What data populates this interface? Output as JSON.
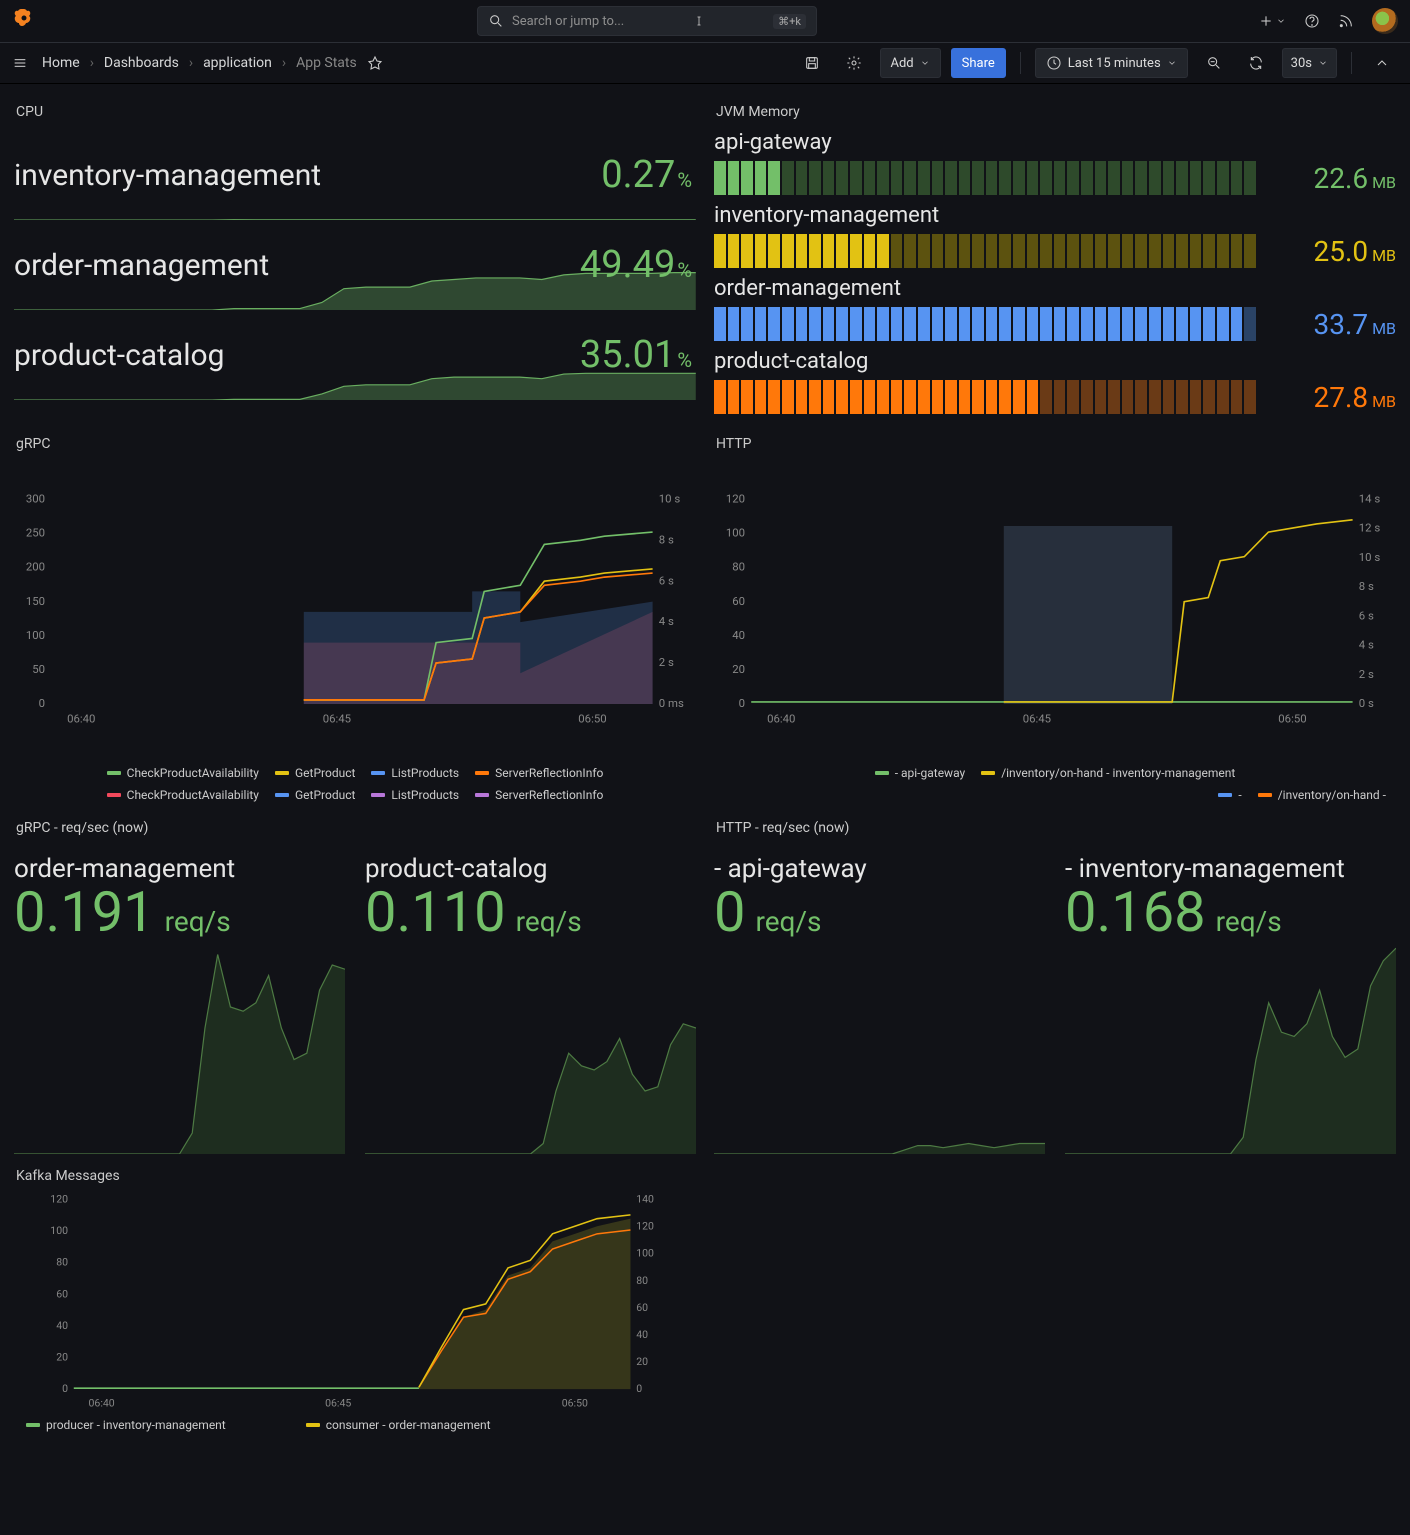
{
  "colors": {
    "green": "#73bf69",
    "yellow": "#e2c213",
    "orange": "#ff780a",
    "blue": "#5794f2",
    "red": "#f2495c",
    "purple": "#b877d9",
    "darkgreen": "#37622f"
  },
  "topbar": {
    "search_placeholder": "Search or jump to...",
    "kbd": "⌘+k"
  },
  "breadcrumbs": {
    "home": "Home",
    "dashboards": "Dashboards",
    "folder": "application",
    "current": "App Stats"
  },
  "toolbar": {
    "add_label": "Add",
    "share_label": "Share",
    "timerange": "Last 15 minutes",
    "refresh": "30s"
  },
  "cpu": {
    "title": "CPU",
    "rows": [
      {
        "name": "inventory-management",
        "value": "0.27",
        "unit": "%",
        "series": [
          0,
          0,
          0,
          0,
          0,
          0,
          0,
          0,
          0,
          0,
          0.5,
          0.3,
          0.3,
          0.3,
          0.3,
          0.3,
          0.3,
          0.3,
          0.3,
          0.3,
          0.3,
          0.3,
          0.3,
          0.3,
          0.3,
          0.3,
          0.3,
          0.3,
          0.3,
          0.3,
          0.3,
          0.3
        ]
      },
      {
        "name": "order-management",
        "value": "49.49",
        "unit": "%",
        "series": [
          0,
          0,
          0,
          0,
          0,
          0,
          0,
          0,
          0,
          0,
          2,
          2,
          2,
          2,
          10,
          28,
          30,
          30,
          30,
          38,
          40,
          42,
          42,
          42,
          40,
          46,
          48,
          48,
          48,
          48,
          49,
          49
        ]
      },
      {
        "name": "product-catalog",
        "value": "35.01",
        "unit": "%",
        "series": [
          0,
          0,
          0,
          0,
          0,
          0,
          0,
          0,
          0,
          0,
          1,
          1,
          1,
          1,
          8,
          18,
          20,
          20,
          20,
          28,
          30,
          30,
          30,
          30,
          28,
          34,
          35,
          35,
          35,
          35,
          35,
          35
        ]
      }
    ],
    "ymax": 55,
    "color": "#73bf69"
  },
  "jvm": {
    "title": "JVM Memory",
    "rows": [
      {
        "name": "api-gateway",
        "value": "22.6",
        "unit": "MB",
        "color": "#73bf69",
        "dim": "#2e4a2b",
        "fill_ratio": 0.12,
        "segments": 40
      },
      {
        "name": "inventory-management",
        "value": "25.0",
        "unit": "MB",
        "color": "#e2c213",
        "dim": "#5c520f",
        "fill_ratio": 0.33,
        "segments": 40
      },
      {
        "name": "order-management",
        "value": "33.7",
        "unit": "MB",
        "color": "#5794f2",
        "dim": "#2a4366",
        "fill_ratio": 0.98,
        "segments": 40
      },
      {
        "name": "product-catalog",
        "value": "27.8",
        "unit": "MB",
        "color": "#ff780a",
        "dim": "#6a3a16",
        "fill_ratio": 0.6,
        "segments": 40
      }
    ]
  },
  "grpc": {
    "title": "gRPC",
    "x_ticks": [
      "06:40",
      "06:45",
      "06:50"
    ],
    "y_left": {
      "min": 0,
      "max": 300,
      "step": 50
    },
    "y_right": {
      "labels": [
        "0 ms",
        "2 s",
        "4 s",
        "6 s",
        "8 s",
        "10 s"
      ]
    },
    "legend1": [
      {
        "label": "CheckProductAvailability",
        "color": "#73bf69"
      },
      {
        "label": "GetProduct",
        "color": "#e2c213"
      },
      {
        "label": "ListProducts",
        "color": "#5794f2"
      },
      {
        "label": "ServerReflectionInfo",
        "color": "#ff780a"
      }
    ],
    "legend2": [
      {
        "label": "CheckProductAvailability",
        "color": "#f2495c"
      },
      {
        "label": "GetProduct",
        "color": "#5794f2"
      },
      {
        "label": "ListProducts",
        "color": "#b877d9"
      },
      {
        "label": "ServerReflectionInfo",
        "color": "#b877d9"
      }
    ],
    "areas": [
      {
        "color": "#f2495c",
        "op": 0.22,
        "points": [
          [
            42,
            70
          ],
          [
            78,
            70
          ],
          [
            78,
            85
          ],
          [
            100,
            55
          ],
          [
            100,
            100
          ],
          [
            42,
            100
          ]
        ]
      },
      {
        "color": "#5794f2",
        "op": 0.22,
        "points": [
          [
            42,
            55
          ],
          [
            70,
            55
          ],
          [
            70,
            45
          ],
          [
            78,
            45
          ],
          [
            78,
            60
          ],
          [
            100,
            50
          ],
          [
            100,
            100
          ],
          [
            42,
            100
          ]
        ]
      }
    ],
    "lines": [
      {
        "color": "#73bf69",
        "points": [
          [
            42,
            98
          ],
          [
            62,
            98
          ],
          [
            64,
            70
          ],
          [
            70,
            68
          ],
          [
            72,
            45
          ],
          [
            78,
            42
          ],
          [
            82,
            22
          ],
          [
            88,
            20
          ],
          [
            92,
            18
          ],
          [
            100,
            16
          ]
        ]
      },
      {
        "color": "#e2c213",
        "points": [
          [
            42,
            98
          ],
          [
            62,
            98
          ],
          [
            64,
            80
          ],
          [
            70,
            78
          ],
          [
            72,
            58
          ],
          [
            78,
            55
          ],
          [
            82,
            40
          ],
          [
            88,
            38
          ],
          [
            92,
            36
          ],
          [
            100,
            34
          ]
        ]
      },
      {
        "color": "#ff780a",
        "points": [
          [
            42,
            98
          ],
          [
            62,
            98
          ],
          [
            64,
            80
          ],
          [
            70,
            78
          ],
          [
            72,
            58
          ],
          [
            78,
            55
          ],
          [
            82,
            42
          ],
          [
            88,
            40
          ],
          [
            92,
            38
          ],
          [
            100,
            36
          ]
        ]
      }
    ]
  },
  "http": {
    "title": "HTTP",
    "x_ticks": [
      "06:40",
      "06:45",
      "06:50"
    ],
    "y_left": {
      "min": 0,
      "max": 120,
      "step": 20
    },
    "y_right": {
      "labels": [
        "0 s",
        "2 s",
        "4 s",
        "6 s",
        "8 s",
        "10 s",
        "12 s",
        "14 s"
      ]
    },
    "legend1": [
      {
        "label": "- api-gateway",
        "color": "#73bf69"
      },
      {
        "label": "/inventory/on-hand - inventory-management",
        "color": "#e2c213"
      }
    ],
    "legend2": [
      {
        "label": "-",
        "color": "#5794f2"
      },
      {
        "label": "/inventory/on-hand -",
        "color": "#ff780a"
      }
    ],
    "areas": [
      {
        "color": "#2a3340",
        "op": 0.9,
        "points": [
          [
            42,
            13
          ],
          [
            70,
            13
          ],
          [
            70,
            100
          ],
          [
            42,
            100
          ]
        ]
      }
    ],
    "lines": [
      {
        "color": "#73bf69",
        "points": [
          [
            0,
            99
          ],
          [
            100,
            99
          ]
        ]
      },
      {
        "color": "#e2c213",
        "points": [
          [
            42,
            99
          ],
          [
            70,
            99
          ],
          [
            72,
            50
          ],
          [
            76,
            48
          ],
          [
            78,
            30
          ],
          [
            82,
            28
          ],
          [
            86,
            16
          ],
          [
            90,
            14
          ],
          [
            94,
            12
          ],
          [
            100,
            10
          ]
        ]
      }
    ]
  },
  "grpc_rate": {
    "title": "gRPC - req/sec (now)",
    "cols": [
      {
        "name": "order-management",
        "value": "0.191",
        "unit": "req/s",
        "series": [
          0,
          0,
          0,
          0,
          0,
          0,
          0,
          0,
          0,
          0,
          0,
          0,
          0,
          0,
          10,
          60,
          95,
          70,
          68,
          72,
          85,
          60,
          45,
          48,
          78,
          90,
          88
        ]
      },
      {
        "name": "product-catalog",
        "value": "0.110",
        "unit": "req/s",
        "series": [
          0,
          0,
          0,
          0,
          0,
          0,
          0,
          0,
          0,
          0,
          0,
          0,
          0,
          0,
          5,
          30,
          48,
          42,
          40,
          44,
          55,
          38,
          30,
          32,
          52,
          62,
          60
        ]
      }
    ],
    "ymax": 100,
    "color": "#37622f",
    "stroke": "#4d7a43"
  },
  "http_rate": {
    "title": "HTTP - req/sec (now)",
    "cols": [
      {
        "name": "- api-gateway",
        "value": "0",
        "unit": "req/s",
        "series": [
          0,
          0,
          0,
          0,
          0,
          0,
          0,
          0,
          0,
          0,
          0,
          0,
          0,
          0,
          0,
          2,
          4,
          4,
          3,
          4,
          5,
          4,
          3,
          4,
          5,
          5,
          5
        ]
      },
      {
        "name": "- inventory-management",
        "value": "0.168",
        "unit": "req/s",
        "series": [
          0,
          0,
          0,
          0,
          0,
          0,
          0,
          0,
          0,
          0,
          0,
          0,
          0,
          0,
          8,
          45,
          72,
          58,
          56,
          62,
          78,
          56,
          46,
          50,
          80,
          92,
          98
        ]
      }
    ],
    "ymax": 100,
    "color": "#37622f",
    "stroke": "#4d7a43"
  },
  "kafka": {
    "title": "Kafka Messages",
    "x_ticks": [
      "06:40",
      "06:45",
      "06:50"
    ],
    "y_left": {
      "min": 0,
      "max": 120,
      "step": 20
    },
    "y_right": {
      "min": 0,
      "max": 140,
      "step": 20
    },
    "legend": [
      {
        "label": "producer - inventory-management",
        "color": "#73bf69"
      },
      {
        "label": "consumer - order-management",
        "color": "#e2c213"
      }
    ],
    "area": {
      "color": "#5c5a1e",
      "op": 0.5,
      "points": [
        [
          62,
          99
        ],
        [
          66,
          80
        ],
        [
          70,
          62
        ],
        [
          74,
          58
        ],
        [
          78,
          40
        ],
        [
          82,
          36
        ],
        [
          86,
          22
        ],
        [
          90,
          18
        ],
        [
          94,
          14
        ],
        [
          100,
          10
        ],
        [
          100,
          100
        ],
        [
          62,
          100
        ]
      ]
    },
    "lines": [
      {
        "color": "#ff780a",
        "points": [
          [
            62,
            99
          ],
          [
            66,
            80
          ],
          [
            70,
            62
          ],
          [
            74,
            60
          ],
          [
            78,
            42
          ],
          [
            82,
            38
          ],
          [
            86,
            26
          ],
          [
            90,
            22
          ],
          [
            94,
            18
          ],
          [
            100,
            16
          ]
        ]
      },
      {
        "color": "#e2c213",
        "points": [
          [
            62,
            99
          ],
          [
            66,
            78
          ],
          [
            70,
            58
          ],
          [
            74,
            55
          ],
          [
            78,
            36
          ],
          [
            82,
            32
          ],
          [
            86,
            18
          ],
          [
            90,
            14
          ],
          [
            94,
            10
          ],
          [
            100,
            8
          ]
        ]
      },
      {
        "color": "#73bf69",
        "points": [
          [
            0,
            99.5
          ],
          [
            62,
            99.5
          ]
        ]
      }
    ]
  }
}
